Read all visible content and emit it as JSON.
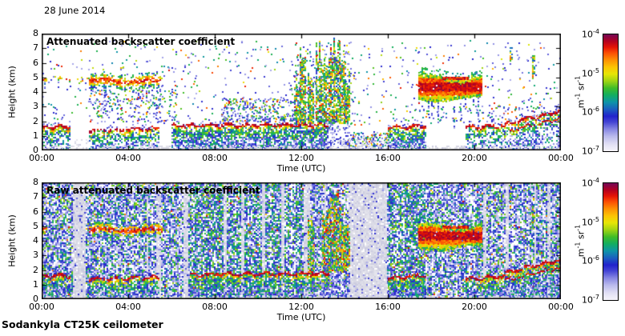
{
  "page": {
    "date_label": "28 June 2014",
    "footer": "Sodankyla CT25K ceilometer",
    "background": "#ffffff"
  },
  "palette": {
    "stops": [
      [
        0.0,
        "#f6f4fb"
      ],
      [
        0.06,
        "#e2e0f4"
      ],
      [
        0.13,
        "#b8b8ec"
      ],
      [
        0.19,
        "#8585e2"
      ],
      [
        0.25,
        "#4444d4"
      ],
      [
        0.3,
        "#2222cc"
      ],
      [
        0.36,
        "#1b5fc0"
      ],
      [
        0.42,
        "#0e94a8"
      ],
      [
        0.48,
        "#12ad62"
      ],
      [
        0.54,
        "#3fbc28"
      ],
      [
        0.6,
        "#9ed414"
      ],
      [
        0.66,
        "#e6e606"
      ],
      [
        0.72,
        "#fcc404"
      ],
      [
        0.78,
        "#fd9103"
      ],
      [
        0.84,
        "#fb5004"
      ],
      [
        0.89,
        "#e51505"
      ],
      [
        0.94,
        "#b4011f"
      ],
      [
        1.0,
        "#740857"
      ]
    ],
    "grays": [
      "#e4e4ec",
      "#d8d8e4",
      "#cccce0",
      "#dcdce8"
    ]
  },
  "chart_data": [
    {
      "type": "heatmap",
      "title": "Attenuated backscatter coefficient",
      "xlabel": "Time (UTC)",
      "ylabel": "Height (km)",
      "x_ticks": [
        "00:00",
        "04:00",
        "08:00",
        "12:00",
        "16:00",
        "20:00",
        "00:00"
      ],
      "x_tick_hours": [
        0,
        4,
        8,
        12,
        16,
        20,
        24
      ],
      "xlim_hours": [
        0,
        24
      ],
      "y_ticks": [
        "0",
        "1",
        "2",
        "3",
        "4",
        "5",
        "6",
        "7",
        "8"
      ],
      "ylim_km": [
        0,
        8
      ],
      "colorbar": {
        "ticks": [
          {
            "base": "10",
            "exp": "-4"
          },
          {
            "base": "10",
            "exp": "-5"
          },
          {
            "base": "10",
            "exp": "-6"
          },
          {
            "base": "10",
            "exp": "-7"
          }
        ],
        "unit": {
          "b1": "m",
          "e1": "-1",
          "b2": " sr",
          "e2": "-1"
        },
        "scale": "log",
        "range_min": "1e-7",
        "range_max": "1e-4"
      },
      "noise_background": false,
      "seed": 7,
      "gray_bands": [],
      "green_zones": [],
      "surface_gray_gaps": [
        [
          1.3,
          2.2
        ],
        [
          13.3,
          16.0
        ]
      ],
      "features": {
        "boundary_layers": [
          {
            "t": [
              0.0,
              1.3
            ],
            "top": [
              1.75,
              1.75
            ],
            "cap": 1,
            "patchy": 0,
            "dense": 0,
            "second_line": 0
          },
          {
            "t": [
              2.2,
              5.4
            ],
            "top": [
              1.5,
              1.65
            ],
            "cap": 1,
            "patchy": 1,
            "dense": 0,
            "second_line": 0
          },
          {
            "t": [
              6.0,
              13.25
            ],
            "top": [
              1.85,
              1.9
            ],
            "cap": 1,
            "patchy": 0,
            "dense": 1,
            "second_line": 0
          },
          {
            "t": [
              16.0,
              17.75
            ],
            "top": [
              1.7,
              1.85
            ],
            "cap": 1,
            "patchy": 0,
            "dense": 1,
            "second_line": 0
          },
          {
            "t": [
              19.6,
              21.4
            ],
            "top": [
              1.7,
              1.85
            ],
            "cap": 1,
            "patchy": 0,
            "dense": 0,
            "second_line": 0
          },
          {
            "t": [
              21.4,
              24.0
            ],
            "top": [
              1.95,
              2.9
            ],
            "cap": 1,
            "patchy": 0,
            "dense": 0,
            "second_line": 1
          }
        ],
        "elevated_layers": [
          {
            "t": [
              0.05,
              0.3
            ],
            "center": 4.85,
            "half": 0.2,
            "density": 0.7,
            "kind": "band"
          },
          {
            "t": [
              0.6,
              2.2
            ],
            "center": 4.95,
            "half": 0.15,
            "density": 0.22,
            "kind": "band"
          },
          {
            "t": [
              2.2,
              5.6
            ],
            "center": 4.8,
            "half": 0.5,
            "density": 0.8,
            "kind": "band"
          },
          {
            "t": [
              17.4,
              20.35
            ],
            "center": 4.3,
            "half": 0.75,
            "density": 0.97,
            "kind": "deck"
          },
          {
            "t": [
              18.5,
              19.7
            ],
            "center": 5.05,
            "half": 0.1,
            "density": 0.9,
            "kind": "line"
          }
        ],
        "cloud_columns": [
          {
            "t": 11.78,
            "top": 4.6
          },
          {
            "t": 12.05,
            "top": 6.7
          },
          {
            "t": 12.42,
            "top": 5.4
          },
          {
            "t": 12.8,
            "top": 6.9
          },
          {
            "t": 13.1,
            "top": 5.8
          },
          {
            "t": 13.38,
            "top": 6.9
          },
          {
            "t": 13.62,
            "top": 7.2
          },
          {
            "t": 13.88,
            "top": 6.4
          },
          {
            "t": 14.08,
            "top": 5.0
          }
        ],
        "streaks": [
          {
            "t": 21.62,
            "h": [
              6.2,
              7.35
            ]
          },
          {
            "t": 22.66,
            "h": [
              5.0,
              6.6
            ]
          }
        ],
        "speck_clusters": [
          {
            "t": [
              2.2,
              6.2
            ],
            "h": [
              2.0,
              4.2
            ],
            "n": 260
          },
          {
            "t": [
              8.3,
              11.6
            ],
            "h": [
              2.0,
              3.6
            ],
            "n": 300
          },
          {
            "t": [
              11.5,
              14.5
            ],
            "h": [
              1.5,
              7.0
            ],
            "n": 240
          },
          {
            "t": [
              14.1,
              16.0
            ],
            "h": [
              0.1,
              1.3
            ],
            "n": 200
          },
          {
            "t": [
              0.0,
              24.0
            ],
            "h": [
              1.8,
              7.6
            ],
            "n": 700
          },
          {
            "t": [
              16.2,
              23.9
            ],
            "h": [
              2.0,
              3.2
            ],
            "n": 120
          }
        ]
      }
    },
    {
      "type": "heatmap",
      "title": "Raw attenuated backscatter coefficient",
      "xlabel": "Time (UTC)",
      "ylabel": "Height (km)",
      "x_ticks": [
        "00:00",
        "04:00",
        "08:00",
        "12:00",
        "16:00",
        "20:00",
        "00:00"
      ],
      "x_tick_hours": [
        0,
        4,
        8,
        12,
        16,
        20,
        24
      ],
      "xlim_hours": [
        0,
        24
      ],
      "y_ticks": [
        "0",
        "1",
        "2",
        "3",
        "4",
        "5",
        "6",
        "7",
        "8"
      ],
      "ylim_km": [
        0,
        8
      ],
      "colorbar": {
        "ticks": [
          {
            "base": "10",
            "exp": "-4"
          },
          {
            "base": "10",
            "exp": "-5"
          },
          {
            "base": "10",
            "exp": "-6"
          },
          {
            "base": "10",
            "exp": "-7"
          }
        ],
        "unit": {
          "b1": "m",
          "e1": "-1",
          "b2": " sr",
          "e2": "-1"
        },
        "scale": "log",
        "range_min": "1e-7",
        "range_max": "1e-4"
      },
      "noise_background": true,
      "seed": 99,
      "gray_bands": [
        [
          1.4,
          2.0
        ],
        [
          4.78,
          4.92
        ],
        [
          5.25,
          5.5
        ],
        [
          6.55,
          6.75
        ],
        [
          8.38,
          8.5
        ],
        [
          9.22,
          9.32
        ],
        [
          10.15,
          10.28
        ],
        [
          11.05,
          11.15
        ],
        [
          12.08,
          12.35
        ],
        [
          13.02,
          13.12
        ],
        [
          14.15,
          15.95
        ],
        [
          20.38,
          20.52
        ],
        [
          21.42,
          21.52
        ],
        [
          22.72,
          22.85
        ],
        [
          23.35,
          23.45
        ]
      ],
      "green_zones": [
        [
          6.8,
          12.1
        ],
        [
          16.0,
          17.7
        ]
      ],
      "surface_gray_gaps": [],
      "features": {
        "boundary_layers": [
          {
            "t": [
              0.0,
              1.3
            ],
            "top": [
              1.75,
              1.75
            ],
            "cap": 1,
            "patchy": 0,
            "dense": 0,
            "second_line": 0
          },
          {
            "t": [
              2.2,
              5.4
            ],
            "top": [
              1.5,
              1.65
            ],
            "cap": 1,
            "patchy": 1,
            "dense": 0,
            "second_line": 0
          },
          {
            "t": [
              6.85,
              13.25
            ],
            "top": [
              1.85,
              1.9
            ],
            "cap": 1,
            "patchy": 0,
            "dense": 0,
            "second_line": 0
          },
          {
            "t": [
              16.0,
              17.75
            ],
            "top": [
              1.6,
              1.8
            ],
            "cap": 1,
            "patchy": 0,
            "dense": 1,
            "second_line": 0
          },
          {
            "t": [
              19.6,
              21.4
            ],
            "top": [
              1.55,
              1.7
            ],
            "cap": 1,
            "patchy": 0,
            "dense": 0,
            "second_line": 0
          },
          {
            "t": [
              21.4,
              24.0
            ],
            "top": [
              1.95,
              2.9
            ],
            "cap": 1,
            "patchy": 0,
            "dense": 0,
            "second_line": 1
          }
        ],
        "elevated_layers": [
          {
            "t": [
              0.05,
              0.3
            ],
            "center": 4.85,
            "half": 0.2,
            "density": 0.7,
            "kind": "band"
          },
          {
            "t": [
              2.2,
              5.6
            ],
            "center": 4.8,
            "half": 0.5,
            "density": 0.8,
            "kind": "band"
          },
          {
            "t": [
              17.4,
              20.35
            ],
            "center": 4.3,
            "half": 0.75,
            "density": 0.97,
            "kind": "deck"
          },
          {
            "t": [
              18.5,
              19.7
            ],
            "center": 5.05,
            "half": 0.1,
            "density": 0.9,
            "kind": "line"
          }
        ],
        "cloud_columns": [
          {
            "t": 12.42,
            "top": 5.4
          },
          {
            "t": 13.1,
            "top": 5.8
          },
          {
            "t": 13.38,
            "top": 6.4
          },
          {
            "t": 13.62,
            "top": 6.8
          },
          {
            "t": 13.88,
            "top": 6.0
          },
          {
            "t": 14.08,
            "top": 5.0
          }
        ],
        "streaks": [
          {
            "t": 21.62,
            "h": [
              6.2,
              7.35
            ]
          },
          {
            "t": 22.66,
            "h": [
              5.0,
              6.6
            ]
          }
        ],
        "speck_clusters": []
      }
    }
  ]
}
